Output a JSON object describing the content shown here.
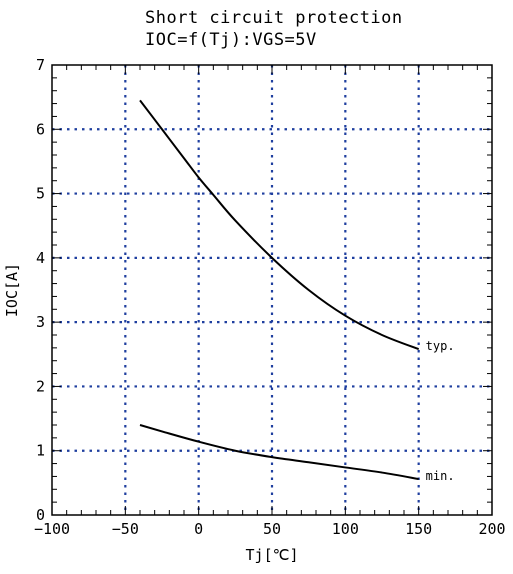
{
  "chart_data": {
    "type": "line",
    "title": "Short circuit protection",
    "subtitle": "IOC=f(Tj):VGS=5V",
    "xlabel": "Tj[℃]",
    "ylabel": "IOC[A]",
    "xlim": [
      -100,
      200
    ],
    "ylim": [
      0,
      7
    ],
    "xticks": [
      -100,
      -50,
      0,
      50,
      100,
      150,
      200
    ],
    "yticks": [
      0,
      1,
      2,
      3,
      4,
      5,
      6,
      7
    ],
    "grid": true,
    "grid_style": "dotted",
    "grid_color": "#1f3f9f",
    "series": [
      {
        "name": "typ.",
        "x": [
          -40,
          -25,
          -10,
          0,
          10,
          25,
          50,
          75,
          100,
          125,
          150
        ],
        "y": [
          6.45,
          6.0,
          5.55,
          5.25,
          4.98,
          4.58,
          4.0,
          3.5,
          3.1,
          2.8,
          2.58
        ]
      },
      {
        "name": "min.",
        "x": [
          -40,
          -25,
          0,
          25,
          50,
          75,
          100,
          125,
          150
        ],
        "y": [
          1.4,
          1.3,
          1.14,
          1.0,
          0.9,
          0.82,
          0.74,
          0.66,
          0.56
        ]
      }
    ]
  }
}
